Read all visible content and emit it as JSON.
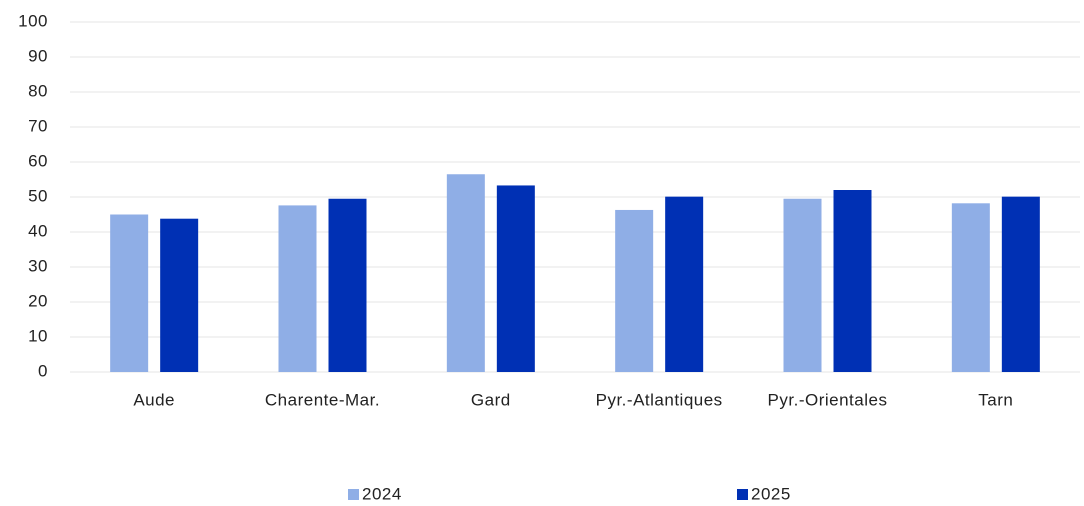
{
  "chart_data": {
    "type": "bar",
    "categories": [
      "Aude",
      "Charente-Mar.",
      "Gard",
      "Pyr.-Atlantiques",
      "Pyr.-Orientales",
      "Tarn"
    ],
    "series": [
      {
        "name": "2024",
        "color": "#8faee6",
        "values": [
          45,
          47.6,
          56.5,
          46.3,
          49.5,
          48.2
        ]
      },
      {
        "name": "2025",
        "color": "#0030b4",
        "values": [
          43.8,
          49.5,
          53.3,
          50.1,
          52,
          50.1
        ]
      }
    ],
    "ylim": [
      0,
      100
    ],
    "yticks": [
      0,
      10,
      20,
      30,
      40,
      50,
      60,
      70,
      80,
      90,
      100
    ],
    "grid": true,
    "legend": "bottom"
  }
}
